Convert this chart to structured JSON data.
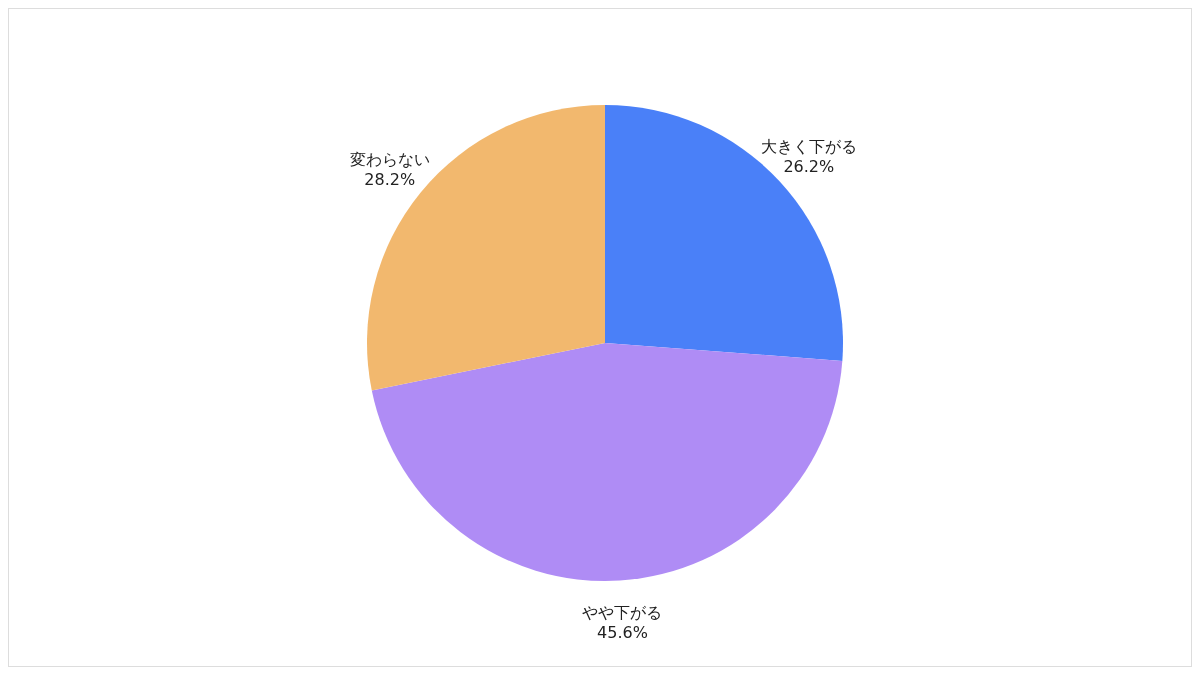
{
  "chart_data": {
    "type": "pie",
    "categories": [
      "大きく下がる",
      "やや下がる",
      "変わらない"
    ],
    "values": [
      26.2,
      45.6,
      28.2
    ],
    "colors": [
      "#4a80f8",
      "#af8cf5",
      "#f2b86e"
    ],
    "value_labels": [
      "26.2%",
      "45.6%",
      "28.2%"
    ]
  }
}
